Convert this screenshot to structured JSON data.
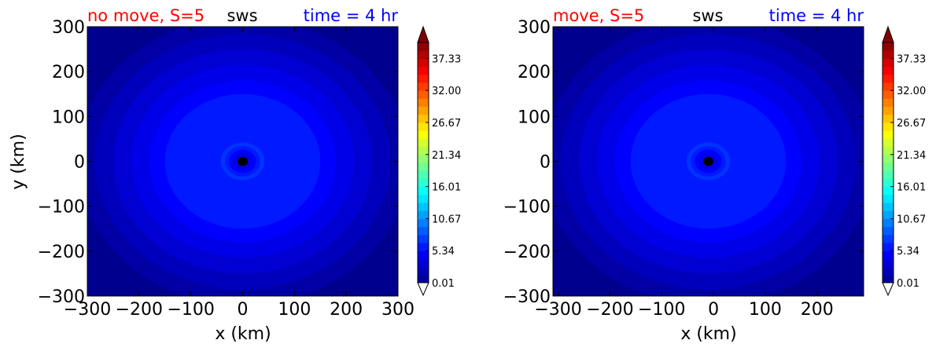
{
  "chart_data": [
    {
      "type": "heatmap",
      "panel": "left",
      "title_left": "no move, S=5",
      "title_center": "sws",
      "title_right": "time = 4 hr",
      "title_left_color": "#ff0000",
      "title_center_color": "#000000",
      "title_right_color": "#0000ff",
      "xlabel": "x (km)",
      "ylabel": "y (km)",
      "xlim": [
        -300,
        300
      ],
      "ylim": [
        -300,
        300
      ],
      "x_ticks": [
        "−300",
        "−200",
        "−100",
        "0",
        "100",
        "200",
        "300"
      ],
      "x_tick_values": [
        -300,
        -200,
        -100,
        0,
        100,
        200,
        300
      ],
      "y_ticks": [
        "300",
        "200",
        "100",
        "0",
        "−100",
        "−200",
        "−300"
      ],
      "y_tick_values": [
        300,
        200,
        100,
        0,
        -100,
        -200,
        -300
      ],
      "center_km": [
        0,
        0
      ],
      "contour_radii_km": [
        320,
        285,
        250,
        215,
        180,
        150,
        42,
        34,
        26,
        18
      ],
      "contour_levels": [
        1.0,
        2.0,
        3.0,
        4.0,
        5.0,
        6.0,
        7.0,
        6.0,
        5.0,
        4.0
      ],
      "eye_radius_km": 10,
      "colorbar_ticks": [
        "37.33",
        "32.00",
        "26.67",
        "21.34",
        "16.01",
        "10.67",
        "5.34",
        "0.01"
      ],
      "colorbar_tick_values": [
        37.33,
        32.0,
        26.67,
        21.34,
        16.01,
        10.67,
        5.34,
        0.01
      ],
      "colorbar_range": [
        0.01,
        40.0
      ],
      "colorbar_extend": "both"
    },
    {
      "type": "heatmap",
      "panel": "right",
      "title_left": "move, S=5",
      "title_center": "sws",
      "title_right": "time = 4 hr",
      "title_left_color": "#ff0000",
      "title_center_color": "#000000",
      "title_right_color": "#0000ff",
      "xlabel": "x (km)",
      "ylabel": "",
      "xlim": [
        -310,
        290
      ],
      "ylim": [
        -300,
        300
      ],
      "x_ticks": [
        "−300",
        "−200",
        "−100",
        "0",
        "100",
        "200"
      ],
      "x_tick_values": [
        -300,
        -200,
        -100,
        0,
        100,
        200
      ],
      "y_ticks": [
        "300",
        "200",
        "100",
        "0",
        "−100",
        "−200",
        "−300"
      ],
      "y_tick_values": [
        300,
        200,
        100,
        0,
        -100,
        -200,
        -300
      ],
      "center_km": [
        -10,
        0
      ],
      "contour_radii_km": [
        320,
        285,
        250,
        215,
        180,
        150,
        42,
        34,
        26,
        18
      ],
      "contour_levels": [
        1.0,
        2.0,
        3.0,
        4.0,
        5.0,
        6.0,
        7.0,
        6.0,
        5.0,
        4.0
      ],
      "eye_radius_km": 10,
      "colorbar_ticks": [
        "37.33",
        "32.00",
        "26.67",
        "21.34",
        "16.01",
        "10.67",
        "5.34",
        "0.01"
      ],
      "colorbar_tick_values": [
        37.33,
        32.0,
        26.67,
        21.34,
        16.01,
        10.67,
        5.34,
        0.01
      ],
      "colorbar_range": [
        0.01,
        40.0
      ],
      "colorbar_extend": "both"
    }
  ],
  "colormap": [
    "#00008f",
    "#0000ff",
    "#0080ff",
    "#00ffff",
    "#80ff80",
    "#ffff00",
    "#ff8000",
    "#ff0000",
    "#800000"
  ],
  "colorbar_extend_low_color": "#ffffff",
  "colorbar_extend_high_color": "#800000"
}
